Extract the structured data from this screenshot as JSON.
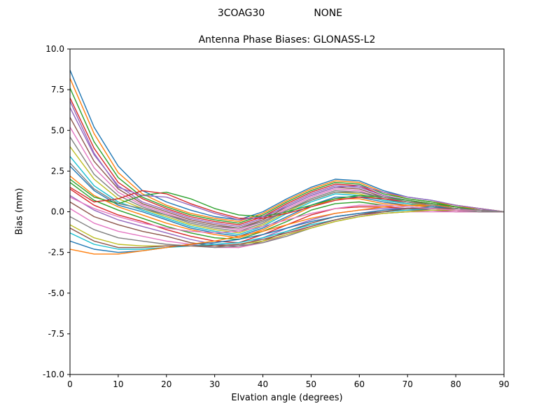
{
  "header": {
    "left": "3COAG30",
    "right": "NONE"
  },
  "chart_data": {
    "type": "line",
    "title": "Antenna Phase Biases: GLONASS-L2",
    "xlabel": "Elvation angle (degrees)",
    "ylabel": "Bias (mm)",
    "xlim": [
      0,
      90
    ],
    "ylim": [
      -10,
      10
    ],
    "xticks": [
      0,
      10,
      20,
      30,
      40,
      50,
      60,
      70,
      80,
      90
    ],
    "xtick_labels": [
      "0",
      "10",
      "20",
      "30",
      "40",
      "50",
      "60",
      "70",
      "80",
      "90"
    ],
    "yticks": [
      -10,
      -7.5,
      -5,
      -2.5,
      0,
      2.5,
      5,
      7.5,
      10
    ],
    "ytick_labels": [
      "-10.0",
      "-7.5",
      "-5.0",
      "-2.5",
      "0.0",
      "2.5",
      "5.0",
      "7.5",
      "10.0"
    ],
    "grid": false,
    "legend": "none",
    "x": [
      0,
      5,
      10,
      15,
      20,
      25,
      30,
      35,
      40,
      45,
      50,
      55,
      60,
      65,
      70,
      75,
      80,
      85,
      90
    ],
    "series": [
      {
        "color": "#1f77b4",
        "values": [
          8.7,
          5.2,
          2.8,
          1.3,
          0.6,
          0.1,
          -0.3,
          -0.5,
          0.0,
          0.8,
          1.5,
          2.0,
          1.9,
          1.3,
          0.9,
          0.7,
          0.4,
          0.2,
          0.0
        ]
      },
      {
        "color": "#ff7f0e",
        "values": [
          8.2,
          4.8,
          2.4,
          1.1,
          0.4,
          -0.1,
          -0.4,
          -0.6,
          -0.1,
          0.7,
          1.4,
          1.9,
          1.8,
          1.2,
          0.8,
          0.6,
          0.4,
          0.2,
          0.0
        ]
      },
      {
        "color": "#2ca02c",
        "values": [
          7.6,
          4.3,
          2.1,
          0.9,
          0.3,
          -0.2,
          -0.5,
          -0.7,
          -0.2,
          0.6,
          1.3,
          1.8,
          1.7,
          1.1,
          0.8,
          0.6,
          0.3,
          0.1,
          0.0
        ]
      },
      {
        "color": "#d62728",
        "values": [
          7.0,
          3.9,
          1.8,
          0.8,
          0.2,
          -0.3,
          -0.6,
          -0.8,
          -0.3,
          0.5,
          1.2,
          1.7,
          1.6,
          1.0,
          0.7,
          0.5,
          0.3,
          0.1,
          0.0
        ]
      },
      {
        "color": "#9467bd",
        "values": [
          6.4,
          3.5,
          1.6,
          0.6,
          0.1,
          -0.4,
          -0.7,
          -0.9,
          -0.4,
          0.4,
          1.1,
          1.6,
          1.5,
          1.0,
          0.7,
          0.5,
          0.3,
          0.1,
          0.0
        ]
      },
      {
        "color": "#8c564b",
        "values": [
          5.8,
          3.1,
          1.4,
          0.5,
          0.0,
          -0.5,
          -0.8,
          -1.0,
          -0.5,
          0.3,
          1.0,
          1.5,
          1.4,
          0.9,
          0.6,
          0.5,
          0.3,
          0.1,
          0.0
        ]
      },
      {
        "color": "#e377c2",
        "values": [
          5.2,
          2.7,
          1.2,
          0.4,
          -0.1,
          -0.6,
          -0.9,
          -1.1,
          -0.6,
          0.2,
          0.9,
          1.4,
          1.3,
          0.8,
          0.6,
          0.4,
          0.2,
          0.1,
          0.0
        ]
      },
      {
        "color": "#7f7f7f",
        "values": [
          4.6,
          2.3,
          1.0,
          0.3,
          -0.2,
          -0.7,
          -1.0,
          -1.2,
          -0.7,
          0.1,
          0.8,
          1.3,
          1.2,
          0.8,
          0.5,
          0.4,
          0.2,
          0.1,
          0.0
        ]
      },
      {
        "color": "#bcbd22",
        "values": [
          4.0,
          2.0,
          0.8,
          0.2,
          -0.3,
          -0.8,
          -1.1,
          -1.3,
          -0.8,
          0.0,
          0.7,
          1.2,
          1.1,
          0.7,
          0.5,
          0.4,
          0.2,
          0.1,
          0.0
        ]
      },
      {
        "color": "#17becf",
        "values": [
          3.4,
          1.6,
          0.6,
          0.1,
          -0.4,
          -0.9,
          -1.2,
          -1.4,
          -0.9,
          -0.1,
          0.6,
          1.1,
          1.0,
          0.7,
          0.5,
          0.3,
          0.2,
          0.1,
          0.0
        ]
      },
      {
        "color": "#1f77b4",
        "values": [
          2.8,
          1.3,
          0.4,
          0.0,
          -0.5,
          -1.0,
          -1.3,
          -1.5,
          -1.0,
          -0.3,
          0.4,
          0.9,
          0.9,
          0.6,
          0.4,
          0.3,
          0.2,
          0.1,
          0.0
        ]
      },
      {
        "color": "#ff7f0e",
        "values": [
          2.2,
          1.0,
          0.3,
          -0.2,
          -0.7,
          -1.1,
          -1.4,
          -1.6,
          -1.1,
          -0.4,
          0.3,
          0.8,
          0.8,
          0.5,
          0.4,
          0.3,
          0.1,
          0.0,
          0.0
        ]
      },
      {
        "color": "#2ca02c",
        "values": [
          1.8,
          0.7,
          0.1,
          -0.4,
          -0.9,
          -1.3,
          -1.6,
          -1.7,
          -1.2,
          -0.6,
          0.1,
          0.5,
          0.6,
          0.4,
          0.3,
          0.2,
          0.1,
          0.0,
          0.0
        ]
      },
      {
        "color": "#d62728",
        "values": [
          1.4,
          0.4,
          -0.2,
          -0.6,
          -1.1,
          -1.5,
          -1.8,
          -1.9,
          -1.4,
          -0.8,
          -0.2,
          0.2,
          0.3,
          0.3,
          0.2,
          0.2,
          0.1,
          0.0,
          0.0
        ]
      },
      {
        "color": "#9467bd",
        "values": [
          1.0,
          0.1,
          -0.5,
          -0.9,
          -1.3,
          -1.7,
          -2.0,
          -2.1,
          -1.6,
          -1.0,
          -0.5,
          -0.1,
          0.1,
          0.2,
          0.2,
          0.1,
          0.1,
          0.0,
          0.0
        ]
      },
      {
        "color": "#8c564b",
        "values": [
          0.6,
          -0.3,
          -0.8,
          -1.2,
          -1.5,
          -1.9,
          -2.1,
          -2.2,
          -1.8,
          -1.2,
          -0.7,
          -0.3,
          -0.1,
          0.0,
          0.1,
          0.1,
          0.0,
          0.0,
          0.0
        ]
      },
      {
        "color": "#e377c2",
        "values": [
          0.2,
          -0.7,
          -1.2,
          -1.5,
          -1.8,
          -2.0,
          -2.2,
          -2.2,
          -1.9,
          -1.4,
          -0.9,
          -0.5,
          -0.2,
          -0.1,
          0.0,
          0.0,
          0.0,
          0.0,
          0.0
        ]
      },
      {
        "color": "#7f7f7f",
        "values": [
          -0.3,
          -1.1,
          -1.6,
          -1.8,
          -2.0,
          -2.1,
          -2.2,
          -2.1,
          -1.9,
          -1.5,
          -1.0,
          -0.6,
          -0.3,
          -0.1,
          0.0,
          0.1,
          0.1,
          0.0,
          0.0
        ]
      },
      {
        "color": "#bcbd22",
        "values": [
          -0.8,
          -1.6,
          -2.0,
          -2.1,
          -2.1,
          -2.1,
          -2.1,
          -2.0,
          -1.8,
          -1.4,
          -1.0,
          -0.6,
          -0.3,
          -0.1,
          0.0,
          0.1,
          0.1,
          0.1,
          0.0
        ]
      },
      {
        "color": "#17becf",
        "values": [
          -1.3,
          -2.0,
          -2.3,
          -2.3,
          -2.2,
          -2.1,
          -2.0,
          -1.9,
          -1.6,
          -1.2,
          -0.8,
          -0.5,
          -0.2,
          0.0,
          0.1,
          0.2,
          0.2,
          0.1,
          0.0
        ]
      },
      {
        "color": "#1f77b4",
        "values": [
          -1.8,
          -2.3,
          -2.5,
          -2.4,
          -2.2,
          -2.0,
          -1.9,
          -1.7,
          -1.4,
          -1.0,
          -0.6,
          -0.3,
          -0.1,
          0.1,
          0.2,
          0.3,
          0.2,
          0.1,
          0.0
        ]
      },
      {
        "color": "#ff7f0e",
        "values": [
          -2.3,
          -2.6,
          -2.6,
          -2.4,
          -2.2,
          -2.0,
          -1.8,
          -1.5,
          -1.2,
          -0.8,
          -0.4,
          -0.1,
          0.1,
          0.3,
          0.4,
          0.4,
          0.3,
          0.2,
          0.0
        ]
      },
      {
        "color": "#2ca02c",
        "values": [
          2.0,
          0.9,
          0.5,
          1.0,
          1.2,
          0.8,
          0.2,
          -0.2,
          -0.3,
          0.0,
          0.4,
          0.8,
          1.0,
          0.9,
          0.7,
          0.5,
          0.3,
          0.1,
          0.0
        ]
      },
      {
        "color": "#d62728",
        "values": [
          1.5,
          0.6,
          0.8,
          1.3,
          1.1,
          0.5,
          0.0,
          -0.4,
          -0.4,
          -0.1,
          0.3,
          0.7,
          0.9,
          0.8,
          0.6,
          0.4,
          0.2,
          0.1,
          0.0
        ]
      },
      {
        "color": "#9467bd",
        "values": [
          6.8,
          3.6,
          1.5,
          1.0,
          0.9,
          0.4,
          -0.1,
          -0.5,
          -0.3,
          0.3,
          1.0,
          1.5,
          1.6,
          1.2,
          0.9,
          0.7,
          0.4,
          0.2,
          0.0
        ]
      },
      {
        "color": "#8c564b",
        "values": [
          -1.0,
          -1.8,
          -2.2,
          -2.2,
          -2.1,
          -2.1,
          -2.1,
          -2.0,
          -1.7,
          -1.3,
          -0.9,
          -0.5,
          -0.2,
          0.0,
          0.2,
          0.2,
          0.2,
          0.1,
          0.0
        ]
      },
      {
        "color": "#e377c2",
        "values": [
          0.9,
          0.2,
          -0.3,
          -0.7,
          -1.0,
          -1.2,
          -1.3,
          -1.2,
          -0.9,
          -0.5,
          -0.1,
          0.2,
          0.4,
          0.4,
          0.3,
          0.2,
          0.1,
          0.1,
          0.0
        ]
      },
      {
        "color": "#7f7f7f",
        "values": [
          3.0,
          1.4,
          0.5,
          0.2,
          -0.2,
          -0.6,
          -0.9,
          -1.0,
          -0.6,
          0.1,
          0.7,
          1.2,
          1.2,
          0.9,
          0.6,
          0.4,
          0.2,
          0.1,
          0.0
        ]
      }
    ]
  }
}
